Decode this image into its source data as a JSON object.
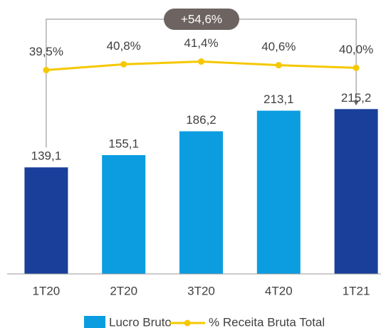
{
  "chart_data": {
    "type": "bar-line",
    "categories": [
      "1T20",
      "2T20",
      "3T20",
      "4T20",
      "1T21"
    ],
    "series": [
      {
        "name": "Lucro Bruto",
        "color": "#0b9de0",
        "colors": [
          "#1a3f9a",
          "#0b9de0",
          "#0b9de0",
          "#0b9de0",
          "#1a3f9a"
        ],
        "values": [
          139.1,
          155.1,
          186.2,
          213.1,
          215.2
        ],
        "value_labels": [
          "139,1",
          "155,1",
          "186,2",
          "213,1",
          "215,2"
        ]
      },
      {
        "name": "% Receita Bruta Total",
        "color": "#f5c800",
        "axis": "y2",
        "values": [
          39.5,
          40.8,
          41.4,
          40.6,
          40.0
        ],
        "value_labels": [
          "39,5%",
          "40,8%",
          "41,4%",
          "40,6%",
          "40,0%"
        ]
      }
    ],
    "annotation": "+54,6%",
    "ylim": [
      0,
      300
    ],
    "y2lim": [
      -6,
      45.3
    ]
  }
}
